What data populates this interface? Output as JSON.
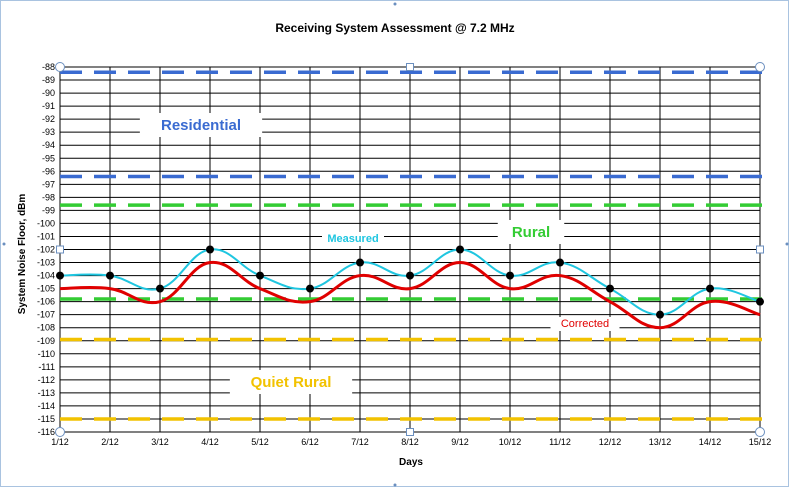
{
  "chart_data": {
    "type": "line",
    "title": "Receiving System Assessment @ 7.2  MHz",
    "xlabel": "Days",
    "ylabel": "System Noise Floor, dBm",
    "categories": [
      "1/12",
      "2/12",
      "3/12",
      "4/12",
      "5/12",
      "6/12",
      "7/12",
      "8/12",
      "9/12",
      "10/12",
      "11/12",
      "12/12",
      "13/12",
      "14/12",
      "15/12"
    ],
    "ylim": [
      -116,
      -88
    ],
    "grid": true,
    "series": [
      {
        "name": "Measured",
        "color": "#1fc6e0",
        "marker": "circle",
        "values": [
          -104,
          -104,
          -105,
          -102,
          -104,
          -105,
          -103,
          -104,
          -102,
          -104,
          -103,
          -105,
          -107,
          -105,
          -106
        ]
      },
      {
        "name": "Corrected",
        "color": "#e00000",
        "values": [
          -105,
          -105,
          -106,
          -103,
          -105,
          -106,
          -104,
          -105,
          -103,
          -105,
          -104,
          -106,
          -108,
          -106,
          -107
        ]
      }
    ],
    "reference_lines": [
      {
        "y": -88.4,
        "color": "#3a6bd1"
      },
      {
        "y": -96.4,
        "color": "#3a6bd1"
      },
      {
        "y": -98.6,
        "color": "#33cc33"
      },
      {
        "y": -105.8,
        "color": "#33cc33"
      },
      {
        "y": -108.9,
        "color": "#f2c200"
      },
      {
        "y": -115.0,
        "color": "#f2c200"
      }
    ],
    "band_labels": [
      {
        "text": "Residential",
        "color": "#3a6bd1"
      },
      {
        "text": "Rural",
        "color": "#33cc33"
      },
      {
        "text": "Quiet Rural",
        "color": "#f2c200"
      }
    ]
  }
}
